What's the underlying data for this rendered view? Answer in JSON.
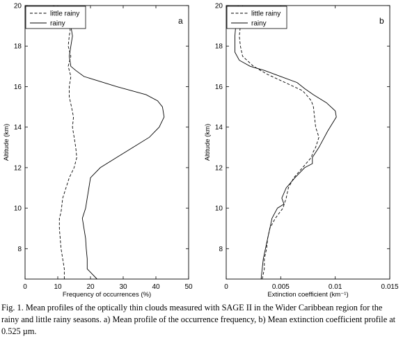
{
  "figure": {
    "caption": "Fig. 1. Mean profiles of the optically thin clouds measured with SAGE II in the Wider Caribbean region for the rainy and little rainy seasons. a) Mean profile of the occurrence frequency, b) Mean extinction coefficient profile at 0.525 µm."
  },
  "chart_data": [
    {
      "type": "line",
      "panel_label": "a",
      "xlabel": "Frequency of occurrences (%)",
      "ylabel": "Altitude (km)",
      "xlim": [
        0,
        50
      ],
      "ylim": [
        6.5,
        20
      ],
      "xticks": [
        0,
        10,
        20,
        30,
        40,
        50
      ],
      "xtick_labels": [
        "0",
        "10",
        "20",
        "30",
        "40",
        "50"
      ],
      "yticks": [
        8,
        10,
        12,
        14,
        16,
        18,
        20
      ],
      "ytick_labels": [
        "8",
        "10",
        "12",
        "14",
        "16",
        "18",
        "20"
      ],
      "grid": false,
      "legend_position": "top-left",
      "series": [
        {
          "name": "little rainy",
          "style": "dashed",
          "x": [
            12,
            12,
            11,
            10.5,
            10.5,
            11,
            11.5,
            12.5,
            13.5,
            15,
            15.8,
            15.5,
            15,
            14.5,
            14.8,
            14.2,
            13.5,
            13.5,
            14,
            13.2,
            14,
            13.2,
            13.5,
            13.8,
            13.5,
            12,
            10.5,
            9.5,
            10.5
          ],
          "y": [
            6.5,
            7,
            8,
            9,
            9.5,
            9.8,
            10.5,
            11,
            11.5,
            12,
            12.5,
            13,
            13.5,
            14,
            14.5,
            15,
            15.5,
            16,
            16.5,
            17,
            17.5,
            18,
            18.5,
            18.8,
            19,
            19.3,
            19.6,
            19.8,
            20
          ]
        },
        {
          "name": "rainy",
          "style": "solid",
          "x": [
            22,
            19,
            19,
            18.7,
            18.5,
            17.5,
            18.5,
            19,
            19.5,
            20,
            23,
            28,
            33,
            38,
            41,
            42.5,
            42,
            40.5,
            37,
            28,
            22,
            18,
            15.5,
            14,
            13.5,
            14,
            14.5,
            14,
            13,
            12.5,
            11,
            8.5
          ],
          "y": [
            6.5,
            7,
            7.5,
            8,
            8.5,
            9.5,
            10,
            10.5,
            11,
            11.5,
            12,
            12.5,
            13,
            13.5,
            14,
            14.5,
            15,
            15.3,
            15.6,
            16,
            16.3,
            16.5,
            16.8,
            17,
            17.5,
            18,
            18.5,
            19,
            19.3,
            19.5,
            19.8,
            20
          ]
        }
      ]
    },
    {
      "type": "line",
      "panel_label": "b",
      "xlabel": "Extinction coefficient (km⁻¹)",
      "ylabel": "Altitude (km)",
      "xlim": [
        0,
        0.015
      ],
      "ylim": [
        6.5,
        20
      ],
      "xticks": [
        0,
        0.005,
        0.01,
        0.015
      ],
      "xtick_labels": [
        "0",
        "0.005",
        "0.01",
        "0.015"
      ],
      "yticks": [
        8,
        10,
        12,
        14,
        16,
        18,
        20
      ],
      "ytick_labels": [
        "8",
        "10",
        "12",
        "14",
        "16",
        "18",
        "20"
      ],
      "grid": false,
      "legend_position": "top-left",
      "series": [
        {
          "name": "little rainy",
          "style": "dashed",
          "x": [
            0.0033,
            0.0035,
            0.0035,
            0.0037,
            0.0038,
            0.004,
            0.0045,
            0.0052,
            0.0055,
            0.0057,
            0.0062,
            0.007,
            0.0078,
            0.008,
            0.0082,
            0.0085,
            0.0082,
            0.0081,
            0.008,
            0.0078,
            0.0075,
            0.007,
            0.0062,
            0.005,
            0.0038,
            0.0025,
            0.0015,
            0.0013,
            0.0012,
            0.0013,
            0.0015
          ],
          "y": [
            6.5,
            7,
            7.5,
            8,
            8.5,
            9,
            9.5,
            10,
            10.5,
            11,
            11.5,
            12,
            12.5,
            12.8,
            13,
            13.5,
            14,
            14.5,
            15,
            15.3,
            15.5,
            15.8,
            16,
            16.3,
            16.6,
            17,
            17.5,
            18,
            18.5,
            19,
            20
          ]
        },
        {
          "name": "rainy",
          "style": "solid",
          "x": [
            0.0032,
            0.0033,
            0.0034,
            0.0036,
            0.0038,
            0.004,
            0.0042,
            0.0047,
            0.0053,
            0.0051,
            0.0055,
            0.0063,
            0.0072,
            0.0079,
            0.0079,
            0.0085,
            0.0093,
            0.0101,
            0.01,
            0.0092,
            0.008,
            0.0072,
            0.0065,
            0.005,
            0.0035,
            0.0022,
            0.0012,
            0.0008,
            0.0008,
            0.0009,
            0.0011
          ],
          "y": [
            6.5,
            7,
            7.5,
            8,
            8.5,
            9,
            9.5,
            10,
            10.2,
            10.5,
            11,
            11.5,
            12,
            12.2,
            12.5,
            13,
            13.8,
            14.5,
            14.8,
            15.2,
            15.6,
            15.9,
            16.2,
            16.5,
            16.8,
            17,
            17.3,
            17.7,
            18.5,
            19.2,
            20
          ]
        }
      ]
    }
  ]
}
